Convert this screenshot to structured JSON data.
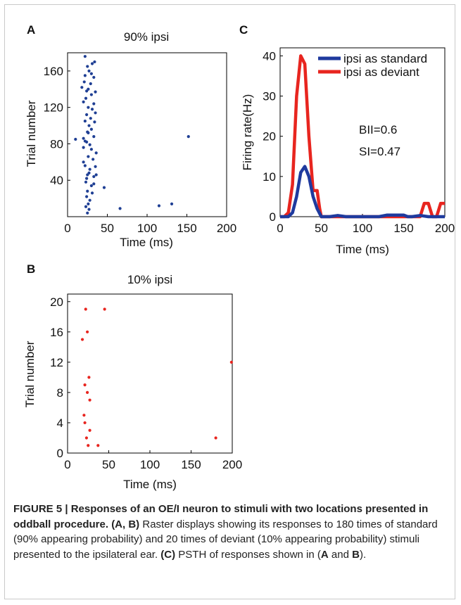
{
  "chart_data": [
    {
      "panel": "A",
      "type": "scatter",
      "title": "90% ipsi",
      "xlabel": "Time (ms)",
      "ylabel": "Trial number",
      "xlim": [
        0,
        200
      ],
      "ylim": [
        0,
        180
      ],
      "xticks": [
        0,
        50,
        100,
        150,
        200
      ],
      "yticks": [
        40,
        80,
        120,
        160
      ],
      "color": "#1f3f94",
      "points": [
        [
          22,
          176
        ],
        [
          31,
          168
        ],
        [
          25,
          165
        ],
        [
          34,
          170
        ],
        [
          27,
          160
        ],
        [
          30,
          157
        ],
        [
          22,
          155
        ],
        [
          33,
          153
        ],
        [
          21,
          148
        ],
        [
          29,
          146
        ],
        [
          18,
          142
        ],
        [
          26,
          140
        ],
        [
          24,
          138
        ],
        [
          35,
          137
        ],
        [
          30,
          134
        ],
        [
          23,
          130
        ],
        [
          20,
          126
        ],
        [
          33,
          124
        ],
        [
          26,
          120
        ],
        [
          31,
          118
        ],
        [
          35,
          114
        ],
        [
          24,
          112
        ],
        [
          29,
          108
        ],
        [
          22,
          105
        ],
        [
          34,
          104
        ],
        [
          27,
          100
        ],
        [
          30,
          96
        ],
        [
          25,
          93
        ],
        [
          26,
          92
        ],
        [
          33,
          88
        ],
        [
          20,
          86
        ],
        [
          10,
          85
        ],
        [
          22,
          83
        ],
        [
          24,
          82
        ],
        [
          28,
          79
        ],
        [
          20,
          76
        ],
        [
          30,
          74
        ],
        [
          36,
          70
        ],
        [
          26,
          66
        ],
        [
          32,
          63
        ],
        [
          20,
          60
        ],
        [
          22,
          56
        ],
        [
          35,
          55
        ],
        [
          28,
          52
        ],
        [
          27,
          48
        ],
        [
          25,
          46
        ],
        [
          36,
          46
        ],
        [
          33,
          44
        ],
        [
          24,
          42
        ],
        [
          23,
          38
        ],
        [
          33,
          36
        ],
        [
          30,
          34
        ],
        [
          46,
          32
        ],
        [
          25,
          28
        ],
        [
          31,
          26
        ],
        [
          24,
          22
        ],
        [
          28,
          18
        ],
        [
          26,
          14
        ],
        [
          23,
          11
        ],
        [
          27,
          8
        ],
        [
          25,
          4
        ],
        [
          66,
          9
        ],
        [
          115,
          12
        ],
        [
          131,
          14
        ],
        [
          152,
          88
        ]
      ]
    },
    {
      "panel": "B",
      "type": "scatter",
      "title": "10% ipsi",
      "xlabel": "Time (ms)",
      "ylabel": "Trial number",
      "xlim": [
        0,
        200
      ],
      "ylim": [
        0,
        21
      ],
      "xticks": [
        0,
        50,
        100,
        150,
        200
      ],
      "yticks": [
        0,
        4,
        8,
        12,
        16,
        20
      ],
      "color": "#e8251f",
      "points": [
        [
          22,
          19
        ],
        [
          45,
          19
        ],
        [
          24,
          16
        ],
        [
          18,
          15
        ],
        [
          26,
          10
        ],
        [
          21,
          9
        ],
        [
          24,
          8
        ],
        [
          27,
          7
        ],
        [
          20,
          5
        ],
        [
          21,
          4
        ],
        [
          27,
          3
        ],
        [
          23,
          2
        ],
        [
          25,
          1
        ],
        [
          37,
          1
        ],
        [
          180,
          2
        ],
        [
          199,
          12
        ]
      ]
    },
    {
      "panel": "C",
      "type": "line",
      "xlabel": "Time (ms)",
      "ylabel": "Firing rate(Hz)",
      "xlim": [
        0,
        200
      ],
      "ylim": [
        0,
        42
      ],
      "xticks": [
        0,
        50,
        100,
        150,
        200
      ],
      "yticks": [
        0,
        10,
        20,
        30,
        40
      ],
      "legend_position": "top-right",
      "series": [
        {
          "name": "ipsi as standard",
          "color": "#1f3a9e",
          "x": [
            0,
            10,
            15,
            20,
            25,
            30,
            35,
            40,
            45,
            50,
            60,
            70,
            80,
            90,
            100,
            120,
            130,
            150,
            155,
            160,
            170,
            180,
            190,
            200
          ],
          "y": [
            0,
            0,
            1,
            5,
            11,
            12.5,
            10,
            5,
            2,
            0,
            0,
            0.3,
            0,
            0,
            0,
            0,
            0.4,
            0.4,
            0,
            0,
            0.3,
            0,
            0,
            0
          ]
        },
        {
          "name": "ipsi as deviant",
          "color": "#e8251f",
          "x": [
            0,
            5,
            10,
            15,
            20,
            25,
            30,
            35,
            40,
            45,
            48,
            50,
            55,
            60,
            100,
            150,
            170,
            175,
            180,
            185,
            190,
            195,
            200
          ],
          "y": [
            0,
            0,
            1,
            8,
            30,
            40,
            38,
            20,
            6.5,
            6.5,
            2,
            0,
            0,
            0,
            0,
            0,
            0,
            3.3,
            3.3,
            0,
            0,
            3.3,
            3.3
          ]
        }
      ],
      "annotations": [
        "BII=0.6",
        "SI=0.47"
      ]
    }
  ],
  "panel_labels": {
    "a": "A",
    "b": "B",
    "c": "C"
  },
  "caption": {
    "title": "FIGURE 5 | Responses of an OE/I neuron to stimuli with two locations presented in oddball procedure.",
    "ref1": "(A, B)",
    "text1": " Raster displays showing its responses to 180 times of standard (90% appearing probability) and 20 times of deviant (10% appearing probability) stimuli presented to the ipsilateral ear. ",
    "ref2": "(C)",
    "text2": " PSTH of responses shown in (",
    "ref3": "A",
    "text3": " and ",
    "ref4": "B",
    "text4": ")."
  }
}
